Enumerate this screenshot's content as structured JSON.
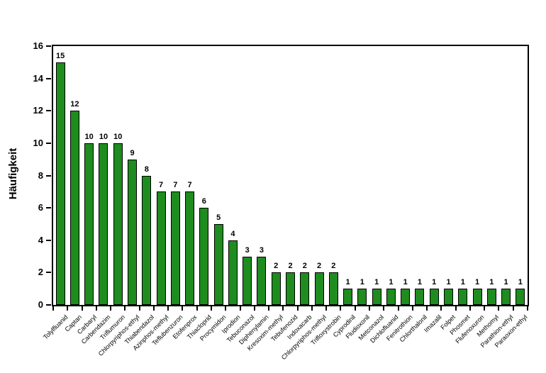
{
  "chart_data": {
    "type": "bar",
    "title": "",
    "xlabel": "",
    "ylabel": "Häufigkeit",
    "ylim": [
      0,
      16
    ],
    "yticks": [
      0,
      2,
      4,
      6,
      8,
      10,
      12,
      14,
      16
    ],
    "grid": false,
    "legend": "none",
    "bar_color": "#1E8C1E",
    "bar_border_color": "#000000",
    "value_labels_shown": true,
    "categories": [
      "Tolylfluanid",
      "Captan",
      "Carbaryl",
      "Carbendazim",
      "Triflumuron",
      "Chlorpyriphos-ethyl",
      "Thiabendazol",
      "Azinphos-methyl",
      "Teflubenzuron",
      "Etofenprox",
      "Thiacloprid",
      "Procymidon",
      "Iprodion",
      "Tebuconazol",
      "Diphenylamin",
      "Kresoxim-methyl",
      "Tebufenozid",
      "Indoxacarb",
      "Chlorpyriphos-methyl",
      "Trifloxystrobin",
      "Cyprodinil",
      "Fludioxonil",
      "Metconazol",
      "Dichlofluanid",
      "Fenitrothion",
      "Chlorthalonil",
      "Imazalil",
      "Folpet",
      "Phosmet",
      "Flufenoxuron",
      "Methomyl",
      "Parathion-ethyl",
      "Paraoxon-ethyl"
    ],
    "values": [
      15,
      12,
      10,
      10,
      10,
      9,
      8,
      7,
      7,
      7,
      6,
      5,
      4,
      3,
      3,
      2,
      2,
      2,
      2,
      2,
      1,
      1,
      1,
      1,
      1,
      1,
      1,
      1,
      1,
      1,
      1,
      1,
      1
    ]
  }
}
